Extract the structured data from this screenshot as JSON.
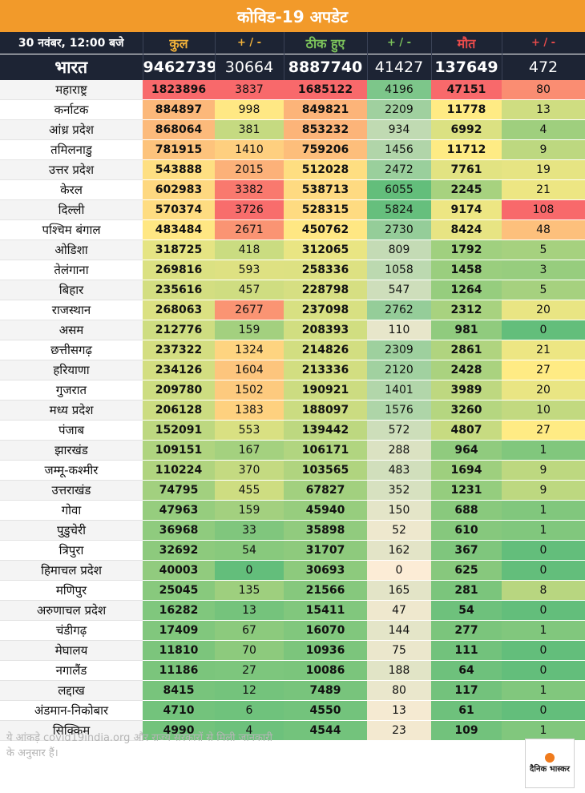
{
  "title": "कोविड-19 अपडेट",
  "footnote": "ये आंकड़े covid19india.org और राज्य सरकारों से मिली जानकारी के अनुसार हैं।",
  "logo_text": "दैनिक भास्कर",
  "colors": {
    "header_bg": "#1d2434",
    "title_bg": "#f29a2a",
    "total_header": "#f2b23a",
    "recovered_header": "#7cc35b",
    "death_header": "#e84b4b"
  },
  "chart_data": {
    "type": "table",
    "title": "कोविड-19 अपडेट",
    "columns": [
      "30 नवंबर, 12:00 बजे",
      "कुल",
      "+ / -",
      "ठीक हुए",
      "+ / -",
      "मौत",
      "+ / -"
    ],
    "national": {
      "name": "भारत",
      "total": 9462739,
      "total_change": 30664,
      "recovered": 8887740,
      "recovered_change": 41427,
      "deaths": 137649,
      "deaths_change": 472
    },
    "rows": [
      {
        "name": "महाराष्ट्र",
        "total": 1823896,
        "total_change": 3837,
        "recovered": 1685122,
        "recovered_change": 4196,
        "deaths": 47151,
        "deaths_change": 80
      },
      {
        "name": "कर्नाटक",
        "total": 884897,
        "total_change": 998,
        "recovered": 849821,
        "recovered_change": 2209,
        "deaths": 11778,
        "deaths_change": 13
      },
      {
        "name": "आंध्र प्रदेश",
        "total": 868064,
        "total_change": 381,
        "recovered": 853232,
        "recovered_change": 934,
        "deaths": 6992,
        "deaths_change": 4
      },
      {
        "name": "तमिलनाडु",
        "total": 781915,
        "total_change": 1410,
        "recovered": 759206,
        "recovered_change": 1456,
        "deaths": 11712,
        "deaths_change": 9
      },
      {
        "name": "उत्तर प्रदेश",
        "total": 543888,
        "total_change": 2015,
        "recovered": 512028,
        "recovered_change": 2472,
        "deaths": 7761,
        "deaths_change": 19
      },
      {
        "name": "केरल",
        "total": 602983,
        "total_change": 3382,
        "recovered": 538713,
        "recovered_change": 6055,
        "deaths": 2245,
        "deaths_change": 21
      },
      {
        "name": "दिल्ली",
        "total": 570374,
        "total_change": 3726,
        "recovered": 528315,
        "recovered_change": 5824,
        "deaths": 9174,
        "deaths_change": 108
      },
      {
        "name": "पश्चिम बंगाल",
        "total": 483484,
        "total_change": 2671,
        "recovered": 450762,
        "recovered_change": 2730,
        "deaths": 8424,
        "deaths_change": 48
      },
      {
        "name": "ओडिशा",
        "total": 318725,
        "total_change": 418,
        "recovered": 312065,
        "recovered_change": 809,
        "deaths": 1792,
        "deaths_change": 5
      },
      {
        "name": "तेलंगाना",
        "total": 269816,
        "total_change": 593,
        "recovered": 258336,
        "recovered_change": 1058,
        "deaths": 1458,
        "deaths_change": 3
      },
      {
        "name": "बिहार",
        "total": 235616,
        "total_change": 457,
        "recovered": 228798,
        "recovered_change": 547,
        "deaths": 1264,
        "deaths_change": 5
      },
      {
        "name": "राजस्थान",
        "total": 268063,
        "total_change": 2677,
        "recovered": 237098,
        "recovered_change": 2762,
        "deaths": 2312,
        "deaths_change": 20
      },
      {
        "name": "असम",
        "total": 212776,
        "total_change": 159,
        "recovered": 208393,
        "recovered_change": 110,
        "deaths": 981,
        "deaths_change": 0
      },
      {
        "name": "छत्तीसगढ़",
        "total": 237322,
        "total_change": 1324,
        "recovered": 214826,
        "recovered_change": 2309,
        "deaths": 2861,
        "deaths_change": 21
      },
      {
        "name": "हरियाणा",
        "total": 234126,
        "total_change": 1604,
        "recovered": 213336,
        "recovered_change": 2120,
        "deaths": 2428,
        "deaths_change": 27
      },
      {
        "name": "गुजरात",
        "total": 209780,
        "total_change": 1502,
        "recovered": 190921,
        "recovered_change": 1401,
        "deaths": 3989,
        "deaths_change": 20
      },
      {
        "name": "मध्य प्रदेश",
        "total": 206128,
        "total_change": 1383,
        "recovered": 188097,
        "recovered_change": 1576,
        "deaths": 3260,
        "deaths_change": 10
      },
      {
        "name": "पंजाब",
        "total": 152091,
        "total_change": 553,
        "recovered": 139442,
        "recovered_change": 572,
        "deaths": 4807,
        "deaths_change": 27
      },
      {
        "name": "झारखंड",
        "total": 109151,
        "total_change": 167,
        "recovered": 106171,
        "recovered_change": 288,
        "deaths": 964,
        "deaths_change": 1
      },
      {
        "name": "जम्मू-कश्मीर",
        "total": 110224,
        "total_change": 370,
        "recovered": 103565,
        "recovered_change": 483,
        "deaths": 1694,
        "deaths_change": 9
      },
      {
        "name": "उत्तराखंड",
        "total": 74795,
        "total_change": 455,
        "recovered": 67827,
        "recovered_change": 352,
        "deaths": 1231,
        "deaths_change": 9
      },
      {
        "name": "गोवा",
        "total": 47963,
        "total_change": 159,
        "recovered": 45940,
        "recovered_change": 150,
        "deaths": 688,
        "deaths_change": 1
      },
      {
        "name": "पुडुचेरी",
        "total": 36968,
        "total_change": 33,
        "recovered": 35898,
        "recovered_change": 52,
        "deaths": 610,
        "deaths_change": 1
      },
      {
        "name": "त्रिपुरा",
        "total": 32692,
        "total_change": 54,
        "recovered": 31707,
        "recovered_change": 162,
        "deaths": 367,
        "deaths_change": 0
      },
      {
        "name": "हिमाचल प्रदेश",
        "total": 40003,
        "total_change": 0,
        "recovered": 30693,
        "recovered_change": 0,
        "deaths": 625,
        "deaths_change": 0
      },
      {
        "name": "मणिपुर",
        "total": 25045,
        "total_change": 135,
        "recovered": 21566,
        "recovered_change": 165,
        "deaths": 281,
        "deaths_change": 8
      },
      {
        "name": "अरुणाचल प्रदेश",
        "total": 16282,
        "total_change": 13,
        "recovered": 15411,
        "recovered_change": 47,
        "deaths": 54,
        "deaths_change": 0
      },
      {
        "name": "चंडीगढ़",
        "total": 17409,
        "total_change": 67,
        "recovered": 16070,
        "recovered_change": 144,
        "deaths": 277,
        "deaths_change": 1
      },
      {
        "name": "मेघालय",
        "total": 11810,
        "total_change": 70,
        "recovered": 10936,
        "recovered_change": 75,
        "deaths": 111,
        "deaths_change": 0
      },
      {
        "name": "नगालैंड",
        "total": 11186,
        "total_change": 27,
        "recovered": 10086,
        "recovered_change": 188,
        "deaths": 64,
        "deaths_change": 0
      },
      {
        "name": "लद्दाख",
        "total": 8415,
        "total_change": 12,
        "recovered": 7489,
        "recovered_change": 80,
        "deaths": 117,
        "deaths_change": 1
      },
      {
        "name": "अंडमान-निकोबार",
        "total": 4710,
        "total_change": 6,
        "recovered": 4550,
        "recovered_change": 13,
        "deaths": 61,
        "deaths_change": 0
      },
      {
        "name": "सिक्किम",
        "total": 4990,
        "total_change": 4,
        "recovered": 4544,
        "recovered_change": 23,
        "deaths": 109,
        "deaths_change": 1
      }
    ]
  }
}
